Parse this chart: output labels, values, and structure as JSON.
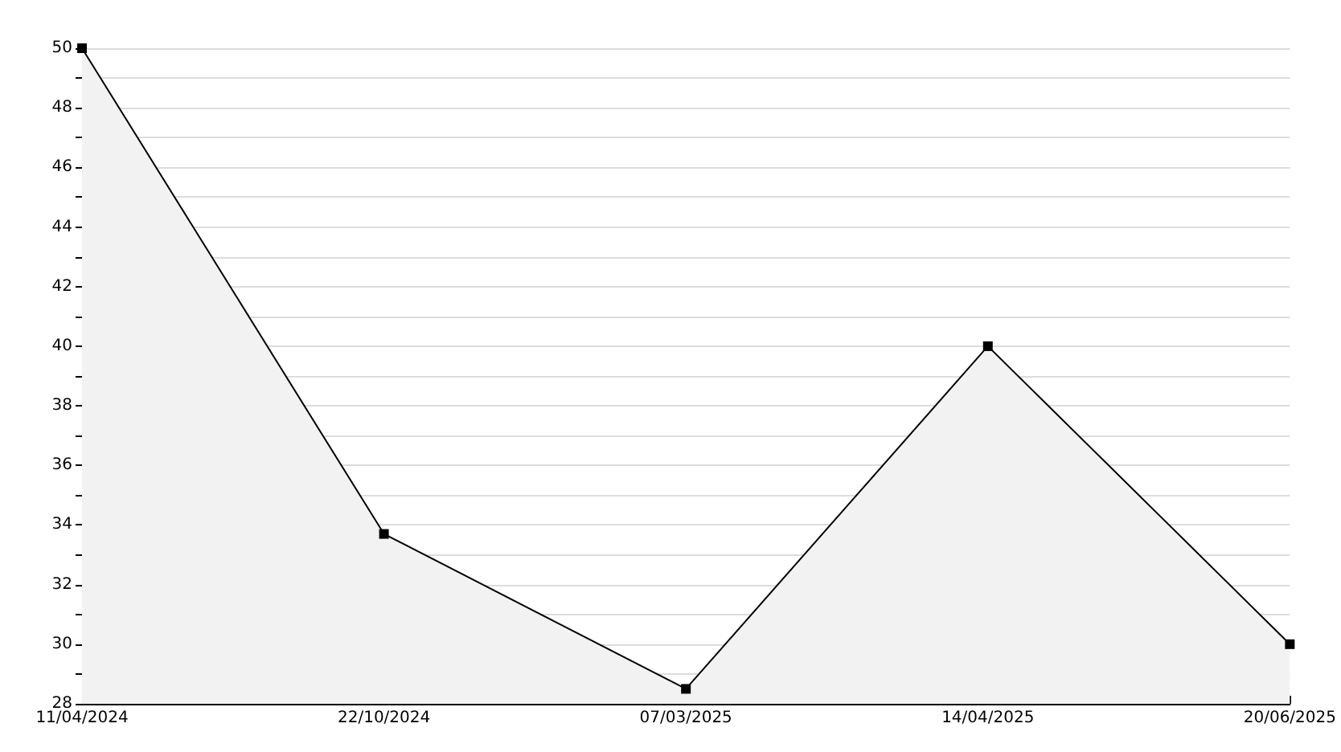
{
  "chart_data": {
    "type": "area",
    "categories": [
      "11/04/2024",
      "22/10/2024",
      "07/03/2025",
      "14/04/2025",
      "20/06/2025"
    ],
    "series": [
      {
        "color": "#000000",
        "values": [
          50,
          33.7,
          28.5,
          40,
          30
        ]
      }
    ],
    "ylim": [
      28,
      50
    ],
    "yticks": [
      28,
      30,
      32,
      34,
      36,
      38,
      40,
      42,
      44,
      46,
      48,
      50
    ],
    "grid": "y",
    "marker": "square",
    "line_style": "solid"
  }
}
